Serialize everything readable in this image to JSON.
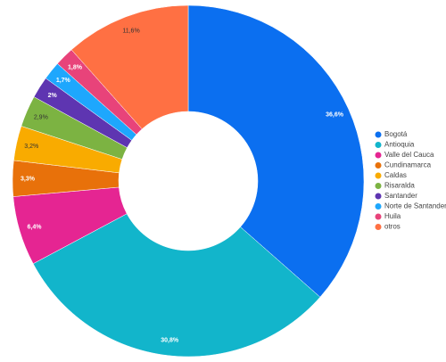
{
  "chart_data": {
    "type": "donut",
    "categories": [
      "Bogotá",
      "Antioquia",
      "Valle del Cauca",
      "Cundinamarca",
      "Caldas",
      "Risaralda",
      "Santander",
      "Norte de Santander",
      "Huila",
      "otros"
    ],
    "values": [
      36.6,
      30.8,
      6.4,
      3.3,
      3.2,
      2.9,
      2,
      1.7,
      1.8,
      11.6
    ],
    "value_labels": [
      "36,6%",
      "30,8%",
      "6,4%",
      "3,3%",
      "3,2%",
      "2,9%",
      "2%",
      "1,7%",
      "1,8%",
      "11,6%"
    ],
    "colors": [
      "#0b6ff0",
      "#12b5cb",
      "#e52592",
      "#e8710a",
      "#f9ab00",
      "#7cb342",
      "#5e35b1",
      "#1ea7fd",
      "#e8437a",
      "#ff7043"
    ],
    "legend": "right"
  }
}
